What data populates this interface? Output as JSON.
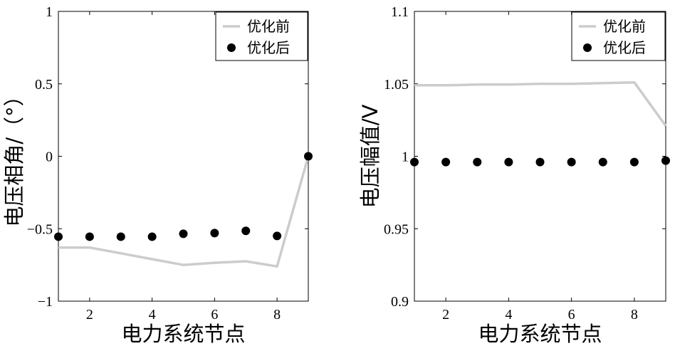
{
  "chart_data": [
    {
      "type": "line",
      "xlabel": "电力系统节点",
      "ylabel": "电压相角/（°）",
      "xlim": [
        1,
        9
      ],
      "ylim": [
        -1,
        1
      ],
      "xticks": [
        2,
        4,
        6,
        8
      ],
      "xtick_labels": [
        "2",
        "4",
        "6",
        "8"
      ],
      "yticks": [
        -1,
        -0.5,
        0,
        0.5,
        1
      ],
      "ytick_labels": [
        "−1",
        "−0.5",
        "0",
        "0.5",
        "1"
      ],
      "legend_position": "top-right",
      "x": [
        1,
        2,
        3,
        4,
        5,
        6,
        7,
        8,
        9
      ],
      "series": [
        {
          "name": "优化前",
          "style": "line",
          "color": "#cccccc",
          "values": [
            -0.63,
            -0.63,
            -0.67,
            -0.71,
            -0.75,
            -0.735,
            -0.725,
            -0.76,
            0.0
          ]
        },
        {
          "name": "优化后",
          "style": "markers",
          "color": "#000000",
          "values": [
            -0.555,
            -0.555,
            -0.555,
            -0.555,
            -0.535,
            -0.53,
            -0.515,
            -0.55,
            0.0
          ]
        }
      ]
    },
    {
      "type": "line",
      "xlabel": "电力系统节点",
      "ylabel": "电压幅值/V",
      "xlim": [
        1,
        9
      ],
      "ylim": [
        0.9,
        1.1
      ],
      "xticks": [
        2,
        4,
        6,
        8
      ],
      "xtick_labels": [
        "2",
        "4",
        "6",
        "8"
      ],
      "yticks": [
        0.9,
        0.95,
        1.0,
        1.05,
        1.1
      ],
      "ytick_labels": [
        "0.9",
        "0.95",
        "1",
        "1.05",
        "1.1"
      ],
      "legend_position": "top-right",
      "x": [
        1,
        2,
        3,
        4,
        5,
        6,
        7,
        8,
        9
      ],
      "series": [
        {
          "name": "优化前",
          "style": "line",
          "color": "#cccccc",
          "values": [
            1.049,
            1.049,
            1.0495,
            1.0495,
            1.05,
            1.05,
            1.0505,
            1.051,
            1.021
          ]
        },
        {
          "name": "优化后",
          "style": "markers",
          "color": "#000000",
          "values": [
            0.996,
            0.996,
            0.996,
            0.996,
            0.996,
            0.996,
            0.996,
            0.996,
            0.997
          ]
        }
      ]
    }
  ]
}
